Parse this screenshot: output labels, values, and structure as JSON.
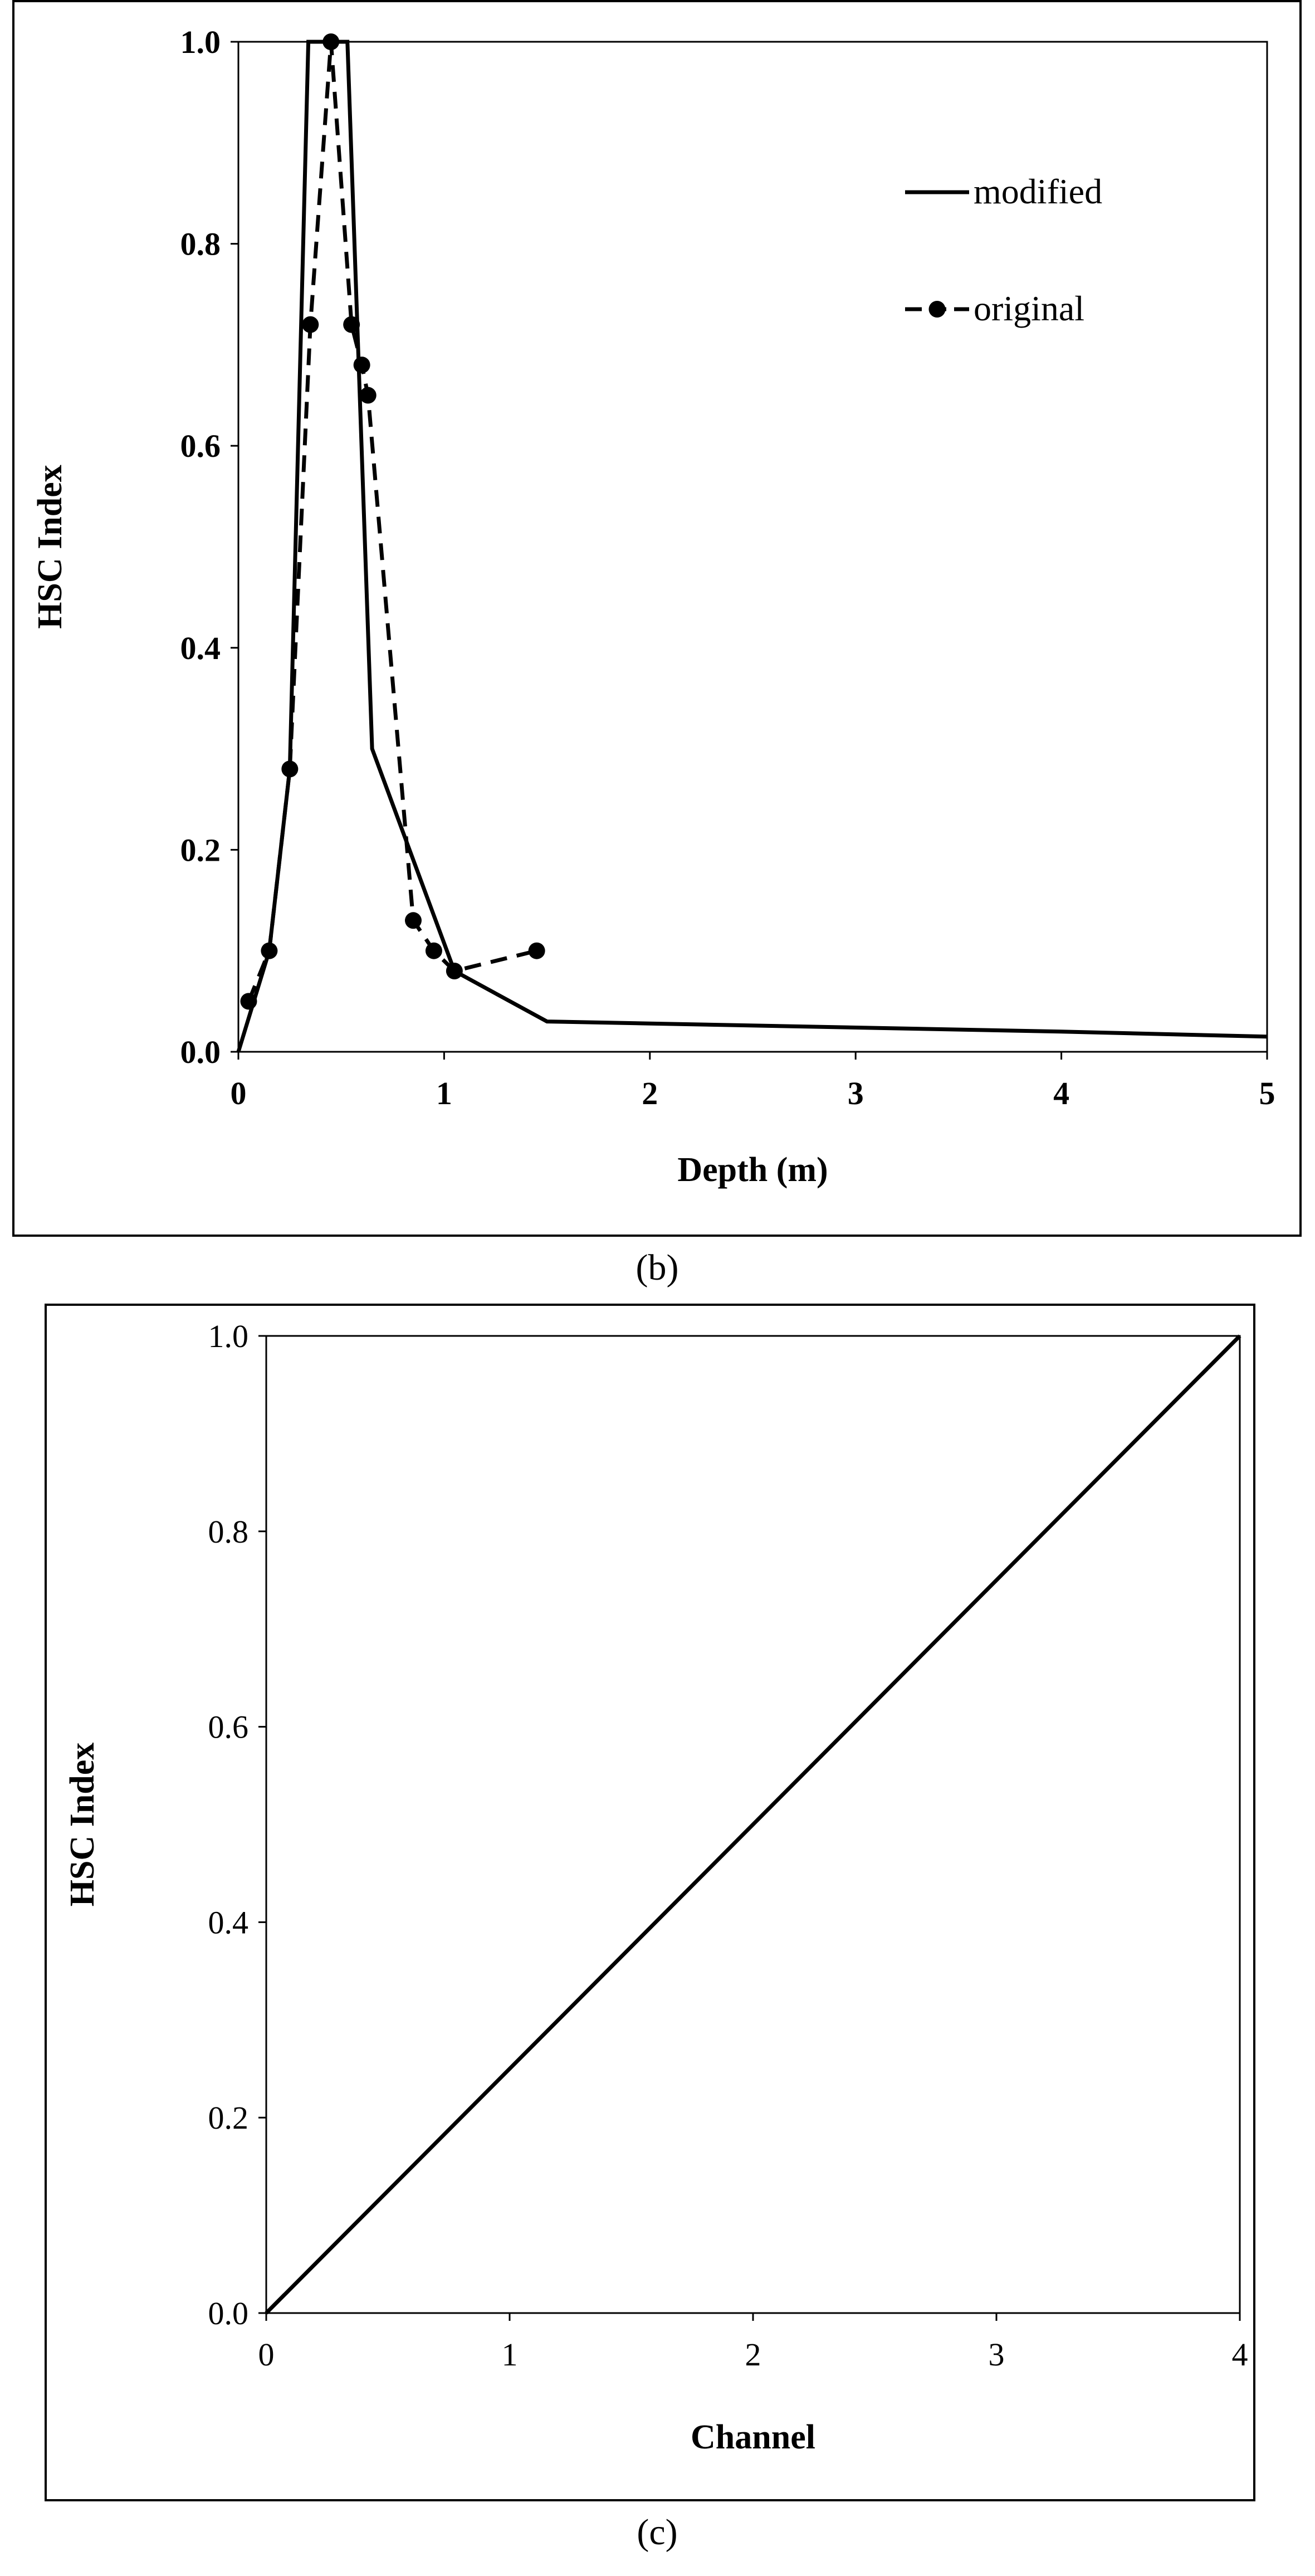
{
  "chart_data": [
    {
      "type": "line",
      "xlabel": "Depth (m)",
      "ylabel": "HSC Index",
      "xlim": [
        0,
        5
      ],
      "ylim": [
        0,
        1
      ],
      "xticks": [
        0,
        1,
        2,
        3,
        4,
        5
      ],
      "yticks": [
        0.0,
        0.2,
        0.4,
        0.6,
        0.8,
        1.0
      ],
      "grid": false,
      "legend_position": "top-right",
      "series": [
        {
          "name": "modified",
          "style": "solid",
          "color": "#000000",
          "x": [
            0,
            0.15,
            0.25,
            0.34,
            0.53,
            0.65,
            1.05,
            1.5,
            2,
            3,
            4,
            5
          ],
          "y": [
            0,
            0.1,
            0.28,
            1.0,
            1.0,
            0.3,
            0.08,
            0.03,
            0.028,
            0.024,
            0.02,
            0.015
          ]
        },
        {
          "name": "original",
          "style": "dashed",
          "marker": "circle",
          "color": "#000000",
          "x": [
            0.05,
            0.15,
            0.25,
            0.35,
            0.45,
            0.55,
            0.6,
            0.63,
            0.85,
            0.95,
            1.05,
            1.45
          ],
          "y": [
            0.05,
            0.1,
            0.28,
            0.72,
            1.0,
            0.72,
            0.68,
            0.65,
            0.13,
            0.1,
            0.08,
            0.1
          ]
        }
      ],
      "caption": "(b)"
    },
    {
      "type": "line",
      "xlabel": "Channel",
      "ylabel": "HSC Index",
      "xlim": [
        0,
        4
      ],
      "ylim": [
        0,
        1
      ],
      "xticks": [
        0,
        1,
        2,
        3,
        4
      ],
      "yticks": [
        0.0,
        0.2,
        0.4,
        0.6,
        0.8,
        1.0
      ],
      "grid": false,
      "series": [
        {
          "style": "solid",
          "color": "#000000",
          "x": [
            0,
            4
          ],
          "y": [
            0,
            1
          ]
        }
      ],
      "caption": "(c)"
    }
  ]
}
